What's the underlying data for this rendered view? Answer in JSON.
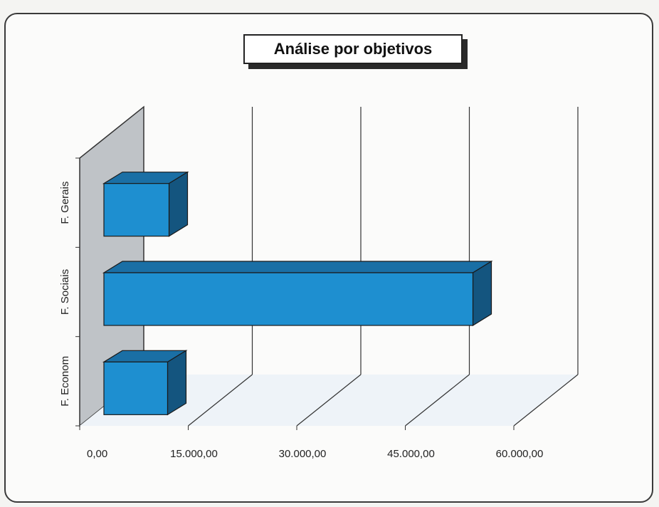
{
  "chart_data": {
    "type": "bar",
    "orientation": "horizontal",
    "style": "3d",
    "title": "Análise por objetivos",
    "categories": [
      "F. Econom",
      "F. Sociais",
      "F. Gerais"
    ],
    "values": [
      8800,
      51000,
      9000
    ],
    "xlim": [
      0,
      60000
    ],
    "x_ticks": [
      0,
      15000,
      30000,
      45000,
      60000
    ],
    "x_tick_labels": [
      "0,00",
      "15.000,00",
      "30.000,00",
      "45.000,00",
      "60.000,00"
    ],
    "bar_color": "#1e8fd0",
    "grid": true,
    "legend": "none"
  }
}
